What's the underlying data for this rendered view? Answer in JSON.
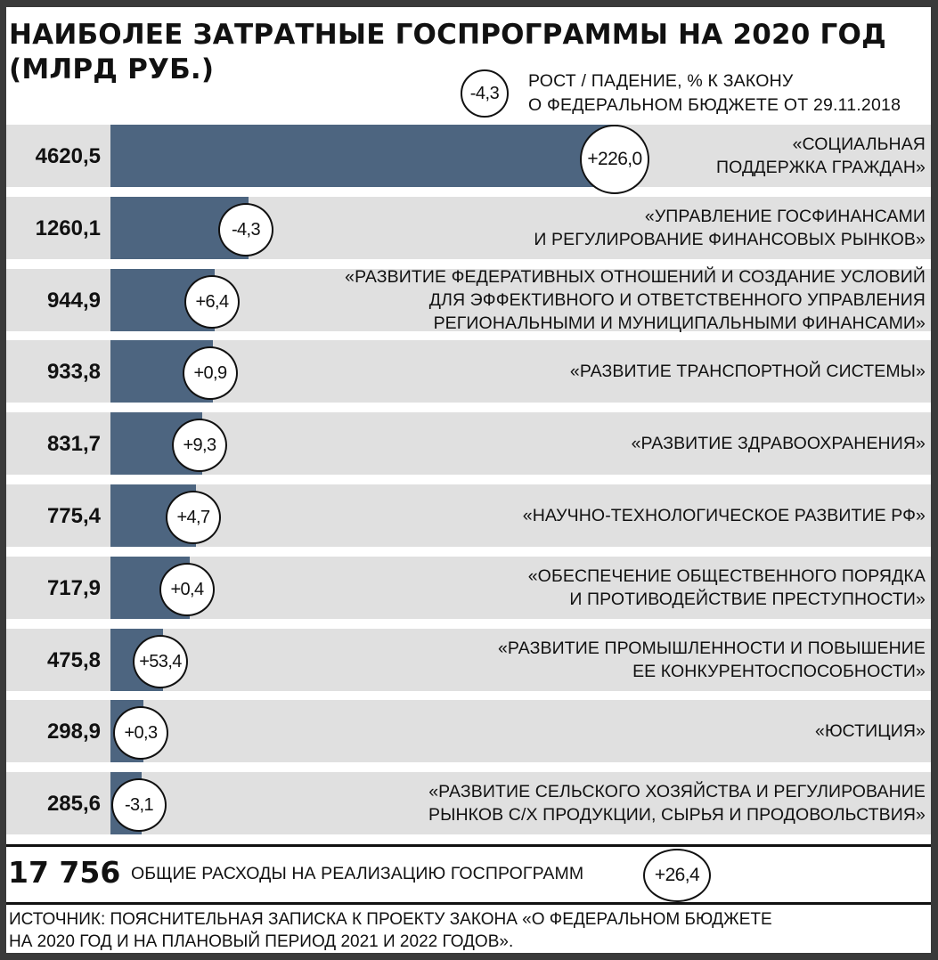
{
  "title_line1": "НАИБОЛЕЕ ЗАТРАТНЫЕ ГОСПРОГРАММЫ НА 2020 ГОД",
  "title_line2": "(МЛРД РУБ.)",
  "legend": {
    "sample": "-4,3",
    "text_line1": "РОСТ / ПАДЕНИЕ, % К ЗАКОНУ",
    "text_line2": "О ФЕДЕРАЛЬНОМ БЮДЖЕТЕ ОТ 29.11.2018"
  },
  "colors": {
    "bar": "#4d6580",
    "row_background": "#e0e0e0",
    "frame": "#3a3a3a"
  },
  "chart_data": {
    "type": "bar",
    "orientation": "horizontal",
    "unit": "млрд руб.",
    "categories": [
      "«СОЦИАЛЬНАЯ\nПОДДЕРЖКА ГРАЖДАН»",
      "«УПРАВЛЕНИЕ ГОСФИНАНСАМИ\nИ РЕГУЛИРОВАНИЕ ФИНАНСОВЫХ РЫНКОВ»",
      "«РАЗВИТИЕ ФЕДЕРАТИВНЫХ ОТНОШЕНИЙ И СОЗДАНИЕ УСЛОВИЙ\nДЛЯ ЭФФЕКТИВНОГО И ОТВЕТСТВЕННОГО УПРАВЛЕНИЯ\nРЕГИОНАЛЬНЫМИ И МУНИЦИПАЛЬНЫМИ ФИНАНСАМИ»",
      "«РАЗВИТИЕ ТРАНСПОРТНОЙ СИСТЕМЫ»",
      "«РАЗВИТИЕ ЗДРАВООХРАНЕНИЯ»",
      "«НАУЧНО-ТЕХНОЛОГИЧЕСКОЕ РАЗВИТИЕ РФ»",
      "«ОБЕСПЕЧЕНИЕ ОБЩЕСТВЕННОГО ПОРЯДКА\nИ ПРОТИВОДЕЙСТВИЕ ПРЕСТУПНОСТИ»",
      "«РАЗВИТИЕ ПРОМЫШЛЕННОСТИ И ПОВЫШЕНИЕ\nЕЕ КОНКУРЕНТОСПОСОБНОСТИ»",
      "«ЮСТИЦИЯ»",
      "«РАЗВИТИЕ СЕЛЬСКОГО ХОЗЯЙСТВА И РЕГУЛИРОВАНИЕ\nРЫНКОВ С/Х ПРОДУКЦИИ, СЫРЬЯ И ПРОДОВОЛЬСТВИЯ»"
    ],
    "values": [
      4620.5,
      1260.1,
      944.9,
      933.8,
      831.7,
      775.4,
      717.9,
      475.8,
      298.9,
      285.6
    ],
    "value_labels": [
      "4620,5",
      "1260,1",
      "944,9",
      "933,8",
      "831,7",
      "775,4",
      "717,9",
      "475,8",
      "298,9",
      "285,6"
    ],
    "changes": [
      226.0,
      -4.3,
      6.4,
      0.9,
      9.3,
      4.7,
      0.4,
      53.4,
      0.3,
      -3.1
    ],
    "change_labels": [
      "+226,0",
      "-4,3",
      "+6,4",
      "+0,9",
      "+9,3",
      "+4,7",
      "+0,4",
      "+53,4",
      "+0,3",
      "-3,1"
    ],
    "xlim": [
      0,
      4620.5
    ]
  },
  "total": {
    "value": "17 756",
    "label": "ОБЩИЕ РАСХОДЫ НА РЕАЛИЗАЦИЮ ГОСПРОГРАММ",
    "change": "+26,4"
  },
  "source": "ИСТОЧНИК: ПОЯСНИТЕЛЬНАЯ ЗАПИСКА К ПРОЕКТУ ЗАКОНА «О ФЕДЕРАЛЬНОМ БЮДЖЕТЕ\nНА 2020 ГОД И НА ПЛАНОВЫЙ ПЕРИОД 2021 И 2022 ГОДОВ»."
}
